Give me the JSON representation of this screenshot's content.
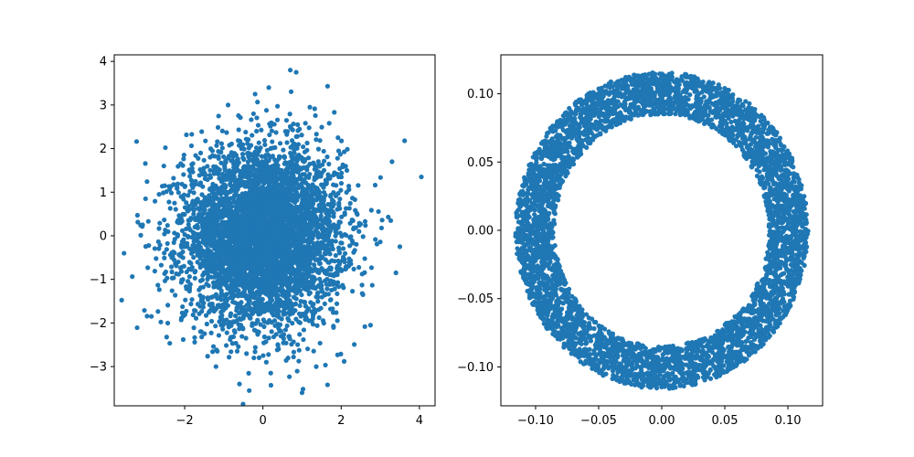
{
  "colors": {
    "marker": "#1f77b4",
    "background": "#ffffff",
    "axes": "#000000"
  },
  "chart_data": [
    {
      "type": "scatter",
      "title": "",
      "xlabel": "",
      "ylabel": "",
      "grid": false,
      "xlim": [
        -3.8,
        4.4
      ],
      "ylim": [
        -3.9,
        4.15
      ],
      "xticks": [
        -2,
        0,
        2,
        4
      ],
      "xtick_labels": [
        "−2",
        "0",
        "2",
        "4"
      ],
      "yticks": [
        -3,
        -2,
        -1,
        0,
        1,
        2,
        3,
        4
      ],
      "ytick_labels": [
        "−3",
        "−2",
        "−1",
        "0",
        "1",
        "2",
        "3",
        "4"
      ],
      "distribution": "bivariate normal, mean (0,0), std 1 per axis",
      "n_points": 5000,
      "visible_outliers": [
        {
          "x": 0.7,
          "y": 3.8
        },
        {
          "x": 0.85,
          "y": 3.75
        },
        {
          "x": -0.2,
          "y": 3.25
        },
        {
          "x": 0.15,
          "y": 3.4
        },
        {
          "x": 1.2,
          "y": 2.95
        },
        {
          "x": 3.3,
          "y": 1.7
        },
        {
          "x": 4.05,
          "y": 1.35
        },
        {
          "x": 3.5,
          "y": -0.25
        },
        {
          "x": 3.4,
          "y": -0.85
        },
        {
          "x": -3.55,
          "y": -0.4
        },
        {
          "x": -2.85,
          "y": -1.85
        },
        {
          "x": 1.0,
          "y": -3.6
        },
        {
          "x": -0.6,
          "y": -3.4
        },
        {
          "x": 0.2,
          "y": -3.15
        },
        {
          "x": -0.35,
          "y": -3.55
        },
        {
          "x": -1.2,
          "y": -3.0
        },
        {
          "x": 2.75,
          "y": -2.05
        },
        {
          "x": -3.0,
          "y": 0.85
        }
      ]
    },
    {
      "type": "scatter",
      "title": "",
      "xlabel": "",
      "ylabel": "",
      "grid": false,
      "xlim": [
        -0.1275,
        0.1275
      ],
      "ylim": [
        -0.1285,
        0.1285
      ],
      "xticks": [
        -0.1,
        -0.05,
        0.0,
        0.05,
        0.1
      ],
      "xtick_labels": [
        "−0.10",
        "−0.05",
        "0.00",
        "0.05",
        "0.10"
      ],
      "yticks": [
        -0.1,
        -0.05,
        0.0,
        0.05,
        0.1
      ],
      "ytick_labels": [
        "−0.10",
        "−0.05",
        "0.00",
        "0.05",
        "0.10"
      ],
      "distribution": "uniform ring (annulus) centred at (0,0)",
      "inner_radius": 0.085,
      "outer_radius": 0.116,
      "n_points": 5000
    }
  ]
}
